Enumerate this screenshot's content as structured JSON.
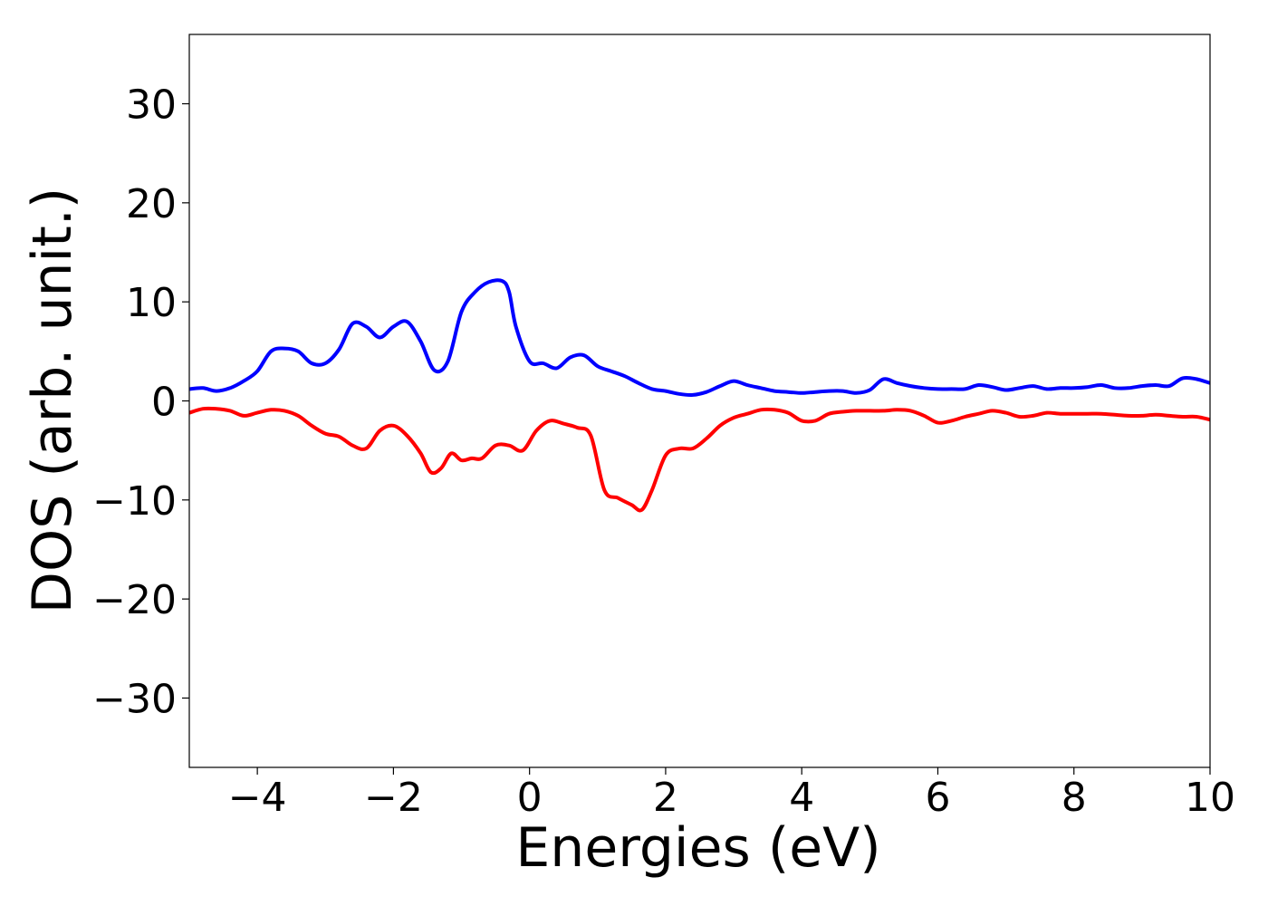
{
  "chart_data": {
    "type": "line",
    "title": "",
    "xlabel": "Energies (eV)",
    "ylabel": "DOS (arb. unit.)",
    "xlim": [
      -5,
      10
    ],
    "ylim": [
      -37,
      37
    ],
    "xticks": [
      -4,
      -2,
      0,
      2,
      4,
      6,
      8,
      10
    ],
    "xtick_labels": [
      "−4",
      "−2",
      "0",
      "2",
      "4",
      "6",
      "8",
      "10"
    ],
    "yticks": [
      -30,
      -20,
      -10,
      0,
      10,
      20,
      30
    ],
    "ytick_labels": [
      "−30",
      "−20",
      "−10",
      "0",
      "10",
      "20",
      "30"
    ],
    "grid": false,
    "legend": "none",
    "series": [
      {
        "color": "#0000ff",
        "x": [
          -5.0,
          -4.8,
          -4.6,
          -4.4,
          -4.2,
          -4.0,
          -3.8,
          -3.6,
          -3.4,
          -3.2,
          -3.0,
          -2.8,
          -2.6,
          -2.4,
          -2.2,
          -2.0,
          -1.8,
          -1.6,
          -1.4,
          -1.2,
          -1.0,
          -0.8,
          -0.6,
          -0.4,
          -0.3,
          -0.2,
          0.0,
          0.2,
          0.4,
          0.6,
          0.8,
          1.0,
          1.2,
          1.4,
          1.6,
          1.8,
          2.0,
          2.2,
          2.4,
          2.6,
          2.8,
          3.0,
          3.2,
          3.4,
          3.6,
          3.8,
          4.0,
          4.2,
          4.4,
          4.6,
          4.8,
          5.0,
          5.2,
          5.4,
          5.6,
          5.8,
          6.0,
          6.2,
          6.4,
          6.6,
          6.8,
          7.0,
          7.2,
          7.4,
          7.6,
          7.8,
          8.0,
          8.2,
          8.4,
          8.6,
          8.8,
          9.0,
          9.2,
          9.4,
          9.6,
          9.8,
          10.0
        ],
        "y": [
          1.2,
          1.3,
          1.0,
          1.3,
          2.0,
          3.0,
          5.0,
          5.3,
          5.0,
          3.8,
          3.8,
          5.2,
          7.8,
          7.5,
          6.4,
          7.5,
          8.0,
          6.0,
          3.1,
          4.0,
          9.0,
          11.0,
          12.0,
          12.1,
          11.0,
          7.5,
          4.0,
          3.8,
          3.3,
          4.4,
          4.6,
          3.5,
          3.0,
          2.5,
          1.8,
          1.2,
          1.0,
          0.7,
          0.6,
          0.9,
          1.5,
          2.0,
          1.6,
          1.3,
          1.0,
          0.9,
          0.8,
          0.9,
          1.0,
          1.0,
          0.8,
          1.1,
          2.2,
          1.8,
          1.5,
          1.3,
          1.2,
          1.2,
          1.2,
          1.6,
          1.4,
          1.1,
          1.3,
          1.5,
          1.2,
          1.3,
          1.3,
          1.4,
          1.6,
          1.3,
          1.3,
          1.5,
          1.6,
          1.5,
          2.3,
          2.2,
          1.8
        ]
      },
      {
        "color": "#ff0000",
        "x": [
          -5.0,
          -4.8,
          -4.6,
          -4.4,
          -4.2,
          -4.0,
          -3.8,
          -3.6,
          -3.4,
          -3.2,
          -3.0,
          -2.8,
          -2.6,
          -2.4,
          -2.2,
          -2.0,
          -1.8,
          -1.6,
          -1.45,
          -1.3,
          -1.15,
          -1.0,
          -0.85,
          -0.7,
          -0.5,
          -0.3,
          -0.1,
          0.1,
          0.3,
          0.5,
          0.7,
          0.9,
          1.1,
          1.3,
          1.5,
          1.65,
          1.8,
          2.0,
          2.2,
          2.4,
          2.6,
          2.8,
          3.0,
          3.2,
          3.4,
          3.6,
          3.8,
          4.0,
          4.2,
          4.4,
          4.6,
          4.8,
          5.0,
          5.2,
          5.4,
          5.6,
          5.8,
          6.0,
          6.2,
          6.4,
          6.6,
          6.8,
          7.0,
          7.2,
          7.4,
          7.6,
          7.8,
          8.0,
          8.2,
          8.4,
          8.6,
          8.8,
          9.0,
          9.2,
          9.4,
          9.6,
          9.8,
          10.0
        ],
        "y": [
          -1.2,
          -0.8,
          -0.8,
          -1.0,
          -1.5,
          -1.2,
          -0.9,
          -1.0,
          -1.5,
          -2.5,
          -3.3,
          -3.6,
          -4.5,
          -4.8,
          -3.0,
          -2.5,
          -3.5,
          -5.3,
          -7.2,
          -6.8,
          -5.3,
          -6.0,
          -5.8,
          -5.8,
          -4.5,
          -4.5,
          -5.0,
          -3.0,
          -2.0,
          -2.3,
          -2.7,
          -3.5,
          -9.0,
          -9.8,
          -10.5,
          -11.0,
          -9.0,
          -5.5,
          -4.8,
          -4.8,
          -3.8,
          -2.5,
          -1.7,
          -1.3,
          -0.9,
          -0.9,
          -1.2,
          -2.0,
          -2.0,
          -1.3,
          -1.1,
          -1.0,
          -1.0,
          -1.0,
          -0.9,
          -1.0,
          -1.5,
          -2.2,
          -2.0,
          -1.6,
          -1.3,
          -1.0,
          -1.2,
          -1.6,
          -1.5,
          -1.2,
          -1.3,
          -1.3,
          -1.3,
          -1.3,
          -1.4,
          -1.5,
          -1.5,
          -1.4,
          -1.5,
          -1.6,
          -1.6,
          -1.9
        ]
      }
    ]
  }
}
